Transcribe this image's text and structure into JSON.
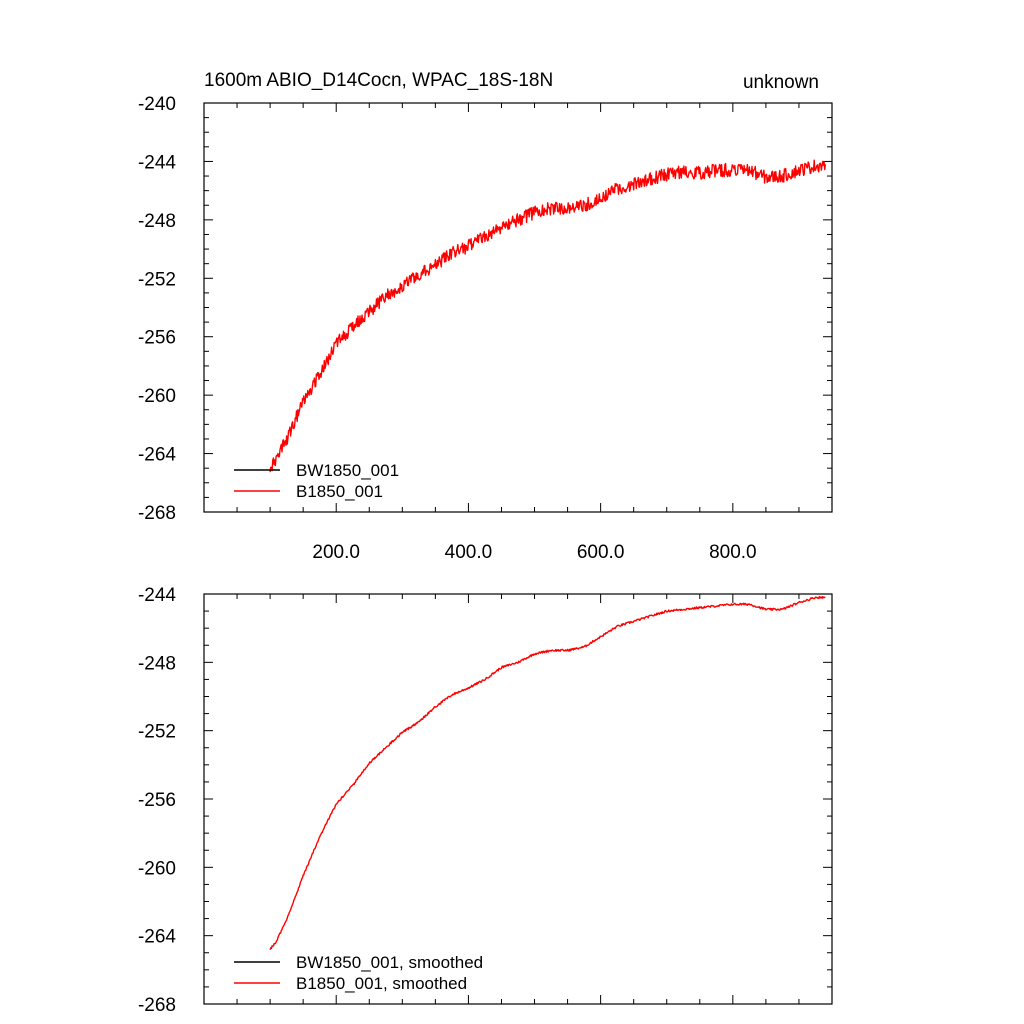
{
  "chart_data": [
    {
      "type": "line",
      "title": "1600m ABIO_D14Cocn, WPAC_18S-18N",
      "subtitle": "unknown",
      "xlim": [
        0,
        950
      ],
      "ylim": [
        -268,
        -240
      ],
      "yticks": [
        -240,
        -244,
        -248,
        -252,
        -256,
        -260,
        -264,
        -268
      ],
      "ytick_labels": [
        "-240",
        "-244",
        "-248",
        "-252",
        "-256",
        "-260",
        "-264",
        "-268"
      ],
      "xticks": [
        200,
        400,
        600,
        800
      ],
      "xtick_labels": [
        "200.0",
        "400.0",
        "600.0",
        "800.0"
      ],
      "noise": 0.45,
      "series": [
        {
          "name": "BW1850_001",
          "color": "#000000",
          "x": [],
          "y": []
        },
        {
          "name": "B1850_001",
          "color": "#ff0000",
          "x": [
            100,
            110,
            130,
            150,
            175,
            200,
            225,
            250,
            275,
            300,
            325,
            350,
            375,
            400,
            425,
            450,
            475,
            500,
            525,
            550,
            575,
            600,
            625,
            650,
            675,
            700,
            725,
            750,
            775,
            800,
            825,
            850,
            875,
            900,
            925,
            940
          ],
          "y": [
            -265.0,
            -264.5,
            -262.5,
            -260.5,
            -258.5,
            -256.5,
            -255.3,
            -254.3,
            -253.2,
            -252.6,
            -251.7,
            -251.1,
            -250.3,
            -249.8,
            -249.2,
            -248.5,
            -248.0,
            -247.5,
            -247.2,
            -247.2,
            -247.0,
            -246.5,
            -245.9,
            -245.5,
            -245.2,
            -244.9,
            -244.7,
            -244.8,
            -244.6,
            -244.6,
            -244.6,
            -245.1,
            -245.0,
            -244.6,
            -244.3,
            -244.2
          ]
        }
      ]
    },
    {
      "type": "line",
      "title": "",
      "xlim": [
        0,
        950
      ],
      "ylim": [
        -268,
        -244
      ],
      "yticks": [
        -244,
        -248,
        -252,
        -256,
        -260,
        -264,
        -268
      ],
      "ytick_labels": [
        "-244",
        "-248",
        "-252",
        "-256",
        "-260",
        "-264",
        "-268"
      ],
      "xticks": [
        200,
        400,
        600,
        800
      ],
      "xtick_labels": [],
      "noise": 0.06,
      "series": [
        {
          "name": "BW1850_001, smoothed",
          "color": "#000000",
          "x": [],
          "y": []
        },
        {
          "name": "B1850_001, smoothed",
          "color": "#ff0000",
          "x": [
            100,
            110,
            130,
            150,
            175,
            200,
            225,
            250,
            275,
            300,
            325,
            350,
            375,
            400,
            425,
            450,
            475,
            500,
            525,
            550,
            575,
            600,
            625,
            650,
            675,
            700,
            725,
            750,
            775,
            800,
            825,
            850,
            875,
            900,
            925,
            940
          ],
          "y": [
            -264.8,
            -264.3,
            -262.6,
            -260.5,
            -258.2,
            -256.3,
            -255.2,
            -253.9,
            -253.0,
            -252.1,
            -251.5,
            -250.6,
            -249.9,
            -249.5,
            -249.0,
            -248.3,
            -248.0,
            -247.5,
            -247.3,
            -247.3,
            -247.1,
            -246.5,
            -245.9,
            -245.6,
            -245.3,
            -245.0,
            -244.9,
            -244.8,
            -244.7,
            -244.6,
            -244.6,
            -244.9,
            -244.9,
            -244.5,
            -244.2,
            -244.2
          ]
        }
      ]
    }
  ]
}
